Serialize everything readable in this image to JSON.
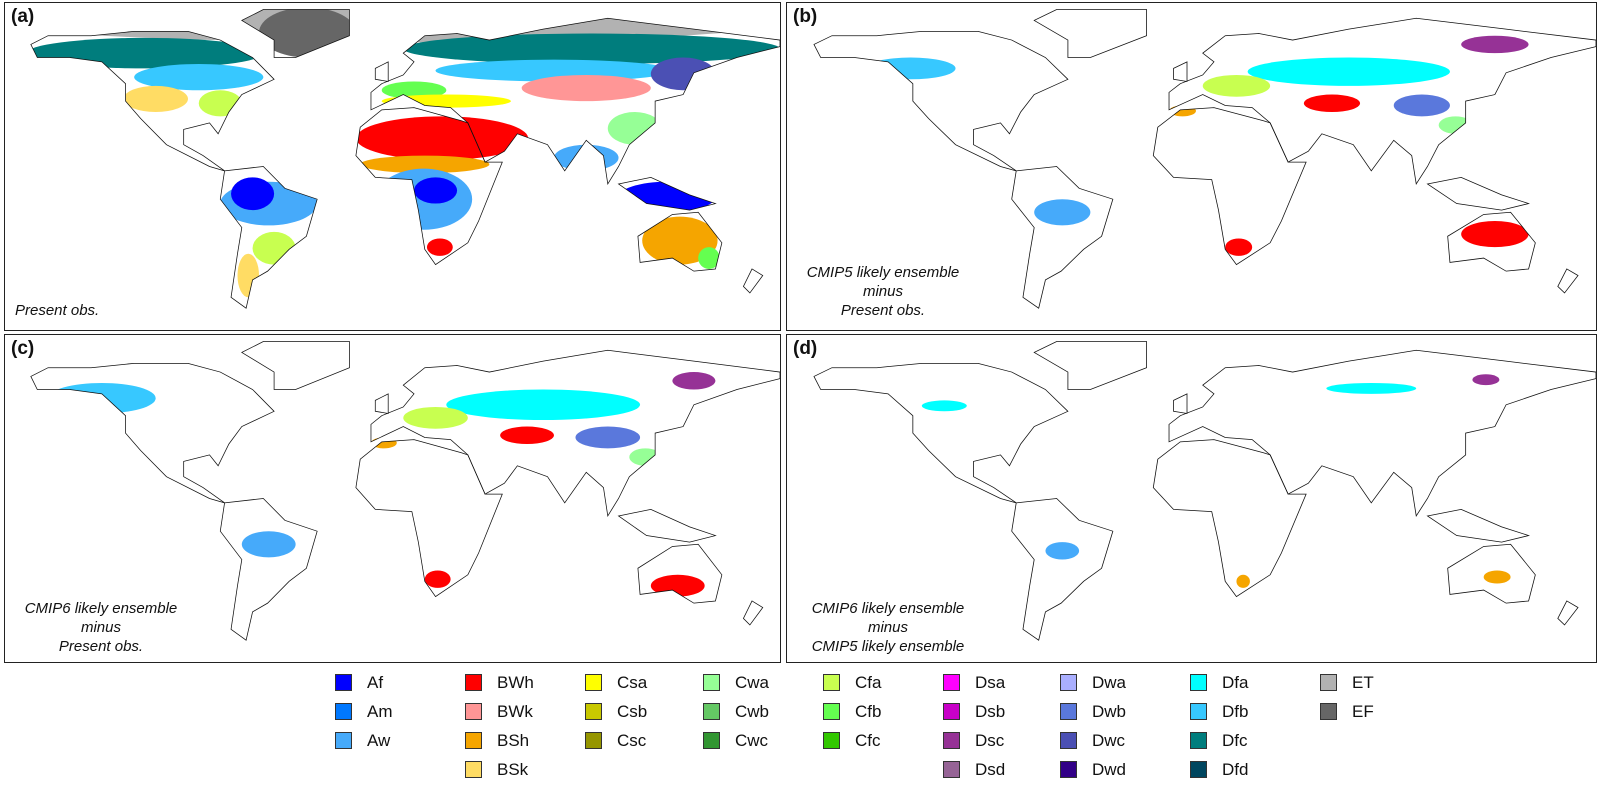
{
  "panels": [
    {
      "label": "(a)",
      "caption": [
        "Present obs."
      ],
      "mode": "full"
    },
    {
      "label": "(b)",
      "caption": [
        "CMIP5 likely ensemble",
        "minus",
        "Present obs."
      ],
      "mode": "diff"
    },
    {
      "label": "(c)",
      "caption": [
        "CMIP6 likely ensemble",
        "minus",
        "Present obs."
      ],
      "mode": "diff2"
    },
    {
      "label": "(d)",
      "caption": [
        "CMIP6 likely ensemble",
        "minus",
        "CMIP5 likely ensemble"
      ],
      "mode": "sparse"
    }
  ],
  "legend": [
    [
      {
        "code": "Af",
        "color": "#0000ff"
      },
      {
        "code": "Am",
        "color": "#0078ff"
      },
      {
        "code": "Aw",
        "color": "#46aafa"
      }
    ],
    [
      {
        "code": "BWh",
        "color": "#ff0000"
      },
      {
        "code": "BWk",
        "color": "#ff9696"
      },
      {
        "code": "BSh",
        "color": "#f5a500"
      },
      {
        "code": "BSk",
        "color": "#ffdc64"
      }
    ],
    [
      {
        "code": "Csa",
        "color": "#ffff00"
      },
      {
        "code": "Csb",
        "color": "#c8c800"
      },
      {
        "code": "Csc",
        "color": "#969600"
      }
    ],
    [
      {
        "code": "Cwa",
        "color": "#96ff96"
      },
      {
        "code": "Cwb",
        "color": "#64c864"
      },
      {
        "code": "Cwc",
        "color": "#329632"
      }
    ],
    [
      {
        "code": "Cfa",
        "color": "#c8ff50"
      },
      {
        "code": "Cfb",
        "color": "#64ff50"
      },
      {
        "code": "Cfc",
        "color": "#32c800"
      }
    ],
    [
      {
        "code": "Dsa",
        "color": "#ff00ff"
      },
      {
        "code": "Dsb",
        "color": "#c800c8"
      },
      {
        "code": "Dsc",
        "color": "#963296"
      },
      {
        "code": "Dsd",
        "color": "#966496"
      }
    ],
    [
      {
        "code": "Dwa",
        "color": "#aaafff"
      },
      {
        "code": "Dwb",
        "color": "#5a78dc"
      },
      {
        "code": "Dwc",
        "color": "#4b50b4"
      },
      {
        "code": "Dwd",
        "color": "#320087"
      }
    ],
    [
      {
        "code": "Dfa",
        "color": "#00ffff"
      },
      {
        "code": "Dfb",
        "color": "#37c8ff"
      },
      {
        "code": "Dfc",
        "color": "#007d7d"
      },
      {
        "code": "Dfd",
        "color": "#00465f"
      }
    ],
    [
      {
        "code": "ET",
        "color": "#b2b2b2"
      },
      {
        "code": "EF",
        "color": "#666666"
      }
    ]
  ]
}
